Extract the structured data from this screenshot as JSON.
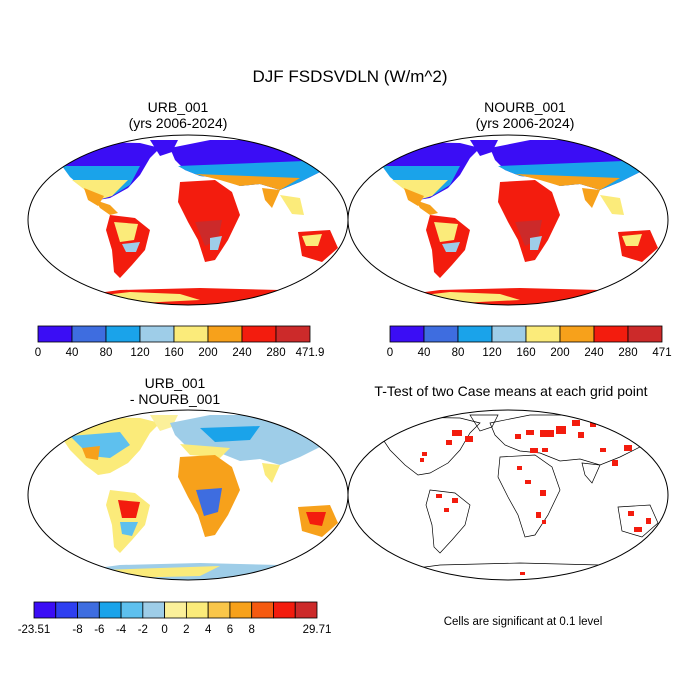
{
  "figure": {
    "title": "DJF FSDSVDLN (W/m^2)"
  },
  "panels": [
    {
      "id": "urb",
      "title_line1": "URB_001",
      "title_line2": "(yrs 2006-2024)",
      "colorbar": {
        "colors": [
          "#3b0df5",
          "#3e6de0",
          "#1aa3ea",
          "#9ecde8",
          "#fbeb7a",
          "#f7a11b",
          "#f31c0e",
          "#cc2a2a"
        ],
        "labels": [
          "0",
          "40",
          "80",
          "120",
          "160",
          "200",
          "240",
          "280",
          "471.9"
        ]
      }
    },
    {
      "id": "nourb",
      "title_line1": "NOURB_001",
      "title_line2": "(yrs 2006-2024)",
      "colorbar": {
        "colors": [
          "#3b0df5",
          "#3e6de0",
          "#1aa3ea",
          "#9ecde8",
          "#fbeb7a",
          "#f7a11b",
          "#f31c0e",
          "#cc2a2a"
        ],
        "labels": [
          "0",
          "40",
          "80",
          "120",
          "160",
          "200",
          "240",
          "280",
          "471"
        ]
      }
    },
    {
      "id": "diff",
      "title_line1": "URB_001",
      "title_line2": "- NOURB_001",
      "colorbar": {
        "colors": [
          "#3b0df5",
          "#2e3ff0",
          "#3e6de0",
          "#1aa3ea",
          "#5ec0ee",
          "#9ecde8",
          "#fbf09a",
          "#fbeb7a",
          "#f9c64a",
          "#f7a11b",
          "#f55a10",
          "#f31c0e",
          "#cc2a2a"
        ],
        "labels": [
          "-23.51",
          "-8",
          "-6",
          "-4",
          "-2",
          "0",
          "2",
          "4",
          "6",
          "8",
          "29.71"
        ]
      }
    },
    {
      "id": "ttest",
      "title_line1": "T-Test of two Case means at each grid point",
      "note": "Cells are significant at 0.1 level"
    }
  ]
}
